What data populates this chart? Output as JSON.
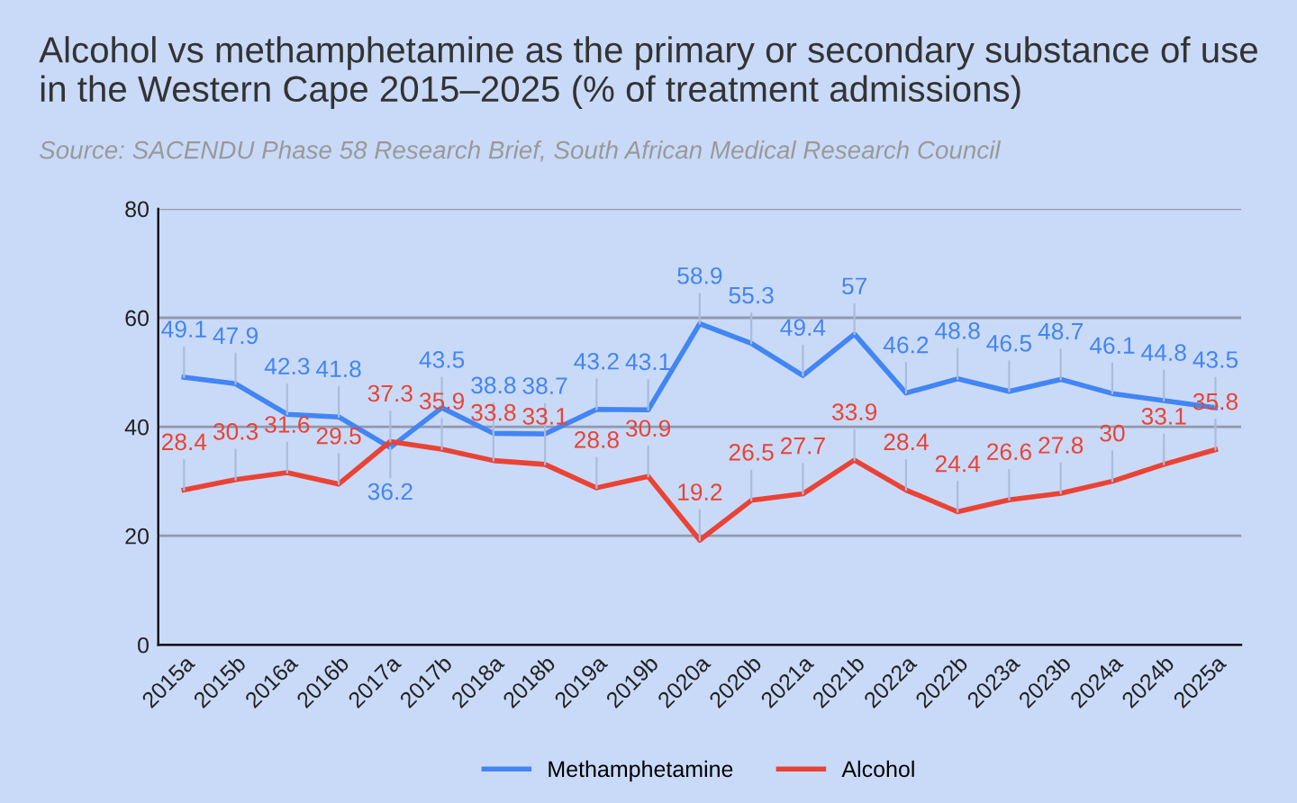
{
  "chart_data": {
    "type": "line",
    "title": "Alcohol vs methamphetamine as the primary or secondary substance of use in the Western Cape 2015–2025 (% of treatment admissions)",
    "subtitle": "Source: SACENDU Phase 58 Research Brief, South African Medical Research Council",
    "categories": [
      "2015a",
      "2015b",
      "2016a",
      "2016b",
      "2017a",
      "2017b",
      "2018a",
      "2018b",
      "2019a",
      "2019b",
      "2020a",
      "2020b",
      "2021a",
      "2021b",
      "2022a",
      "2022b",
      "2023a",
      "2023b",
      "2024a",
      "2024b",
      "2025a"
    ],
    "series": [
      {
        "name": "Methamphetamine",
        "color": "#4285f4",
        "values": [
          49.1,
          47.9,
          42.3,
          41.8,
          36.2,
          43.5,
          38.8,
          38.7,
          43.2,
          43.1,
          58.9,
          55.3,
          49.4,
          57,
          46.2,
          48.8,
          46.5,
          48.7,
          46.1,
          44.8,
          43.5
        ]
      },
      {
        "name": "Alcohol",
        "color": "#ea4335",
        "values": [
          28.4,
          30.3,
          31.6,
          29.5,
          37.3,
          35.9,
          33.8,
          33.1,
          28.8,
          30.9,
          19.2,
          26.5,
          27.7,
          33.9,
          28.4,
          24.4,
          26.6,
          27.8,
          30,
          33.1,
          35.8
        ]
      }
    ],
    "ylim": [
      0,
      80
    ],
    "yticks": [
      0,
      20,
      40,
      60,
      80
    ],
    "grid": "y",
    "legend": "bottom",
    "data_labels": true,
    "marker": "none",
    "line_style": "solid"
  }
}
